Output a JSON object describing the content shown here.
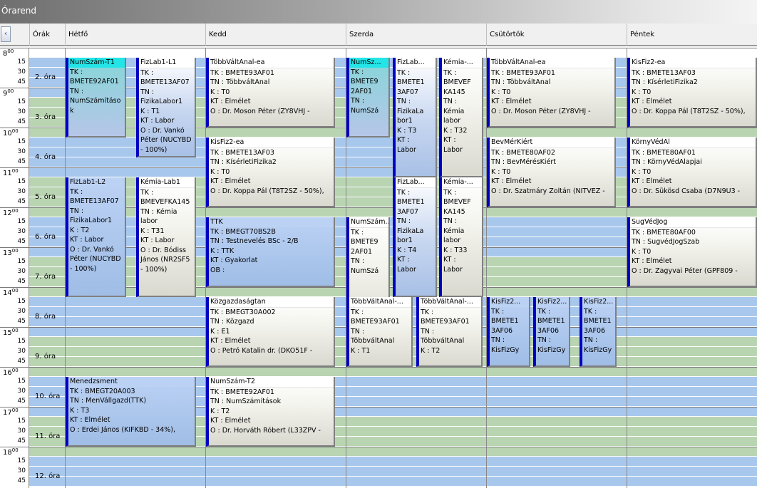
{
  "window": {
    "title": "Órarend"
  },
  "header": {
    "scroll_icon": "‹",
    "hours_col": "Órák",
    "days": [
      "Hétfő",
      "Kedd",
      "Szerda",
      "Csütörtök",
      "Péntek"
    ]
  },
  "time_labels": {
    "hours": [
      "8",
      "9",
      "10",
      "11",
      "12",
      "13",
      "14",
      "15",
      "16",
      "17",
      "18"
    ],
    "minutes": [
      "00",
      "15",
      "30",
      "45"
    ],
    "periods": [
      "2. óra",
      "3. óra",
      "4. óra",
      "5. óra",
      "6. óra",
      "7. óra",
      "8. óra",
      "9. óra",
      "10. óra",
      "11. óra",
      "12. óra"
    ]
  },
  "events": [
    {
      "title": "NumSzám-T1",
      "body": "TK :\nBMETE92AF01\nTN :\nNumSzámításo\nk",
      "style": "cyan"
    },
    {
      "title": "FizLab1-L1",
      "body": "TK :\nBMETE13AF07\nTN :\nFizikaLabor1\nK : T1\nKT : Labor\nO : Dr. Vankó\nPéter (NUCYBD\n- 100%)",
      "style": "bluebody"
    },
    {
      "title": "TöbbVáltAnal-ea",
      "body": "TK : BMETE93AF01\nTN : TöbbváltAnal\nK : T0\nKT : Elmélet\nO : Dr. Moson Péter (ZY8VHJ -",
      "style": "white"
    },
    {
      "title": "NumSz...",
      "body": "TK :\nBMETE9\n2AF01\nTN :\nNumSzá",
      "style": "cyan"
    },
    {
      "title": "FizLab...",
      "body": "TK :\nBMETE1\n3AF07\nTN :\nFizikaLa\nbor1\nK : T3\nKT :\nLabor",
      "style": "bluebody"
    },
    {
      "title": "Kémia-...",
      "body": "TK :\nBMEVEF\nKA145\nTN :\nKémia\nlabor\nK : T32\nKT :\nLabor",
      "style": "white"
    },
    {
      "title": "TöbbVáltAnal-ea",
      "body": "TK : BMETE93AF01\nTN : TöbbváltAnal\nK : T0\nKT : Elmélet\nO : Dr. Moson Péter (ZY8VHJ -",
      "style": "white"
    },
    {
      "title": "KisFiz2-ea",
      "body": "TK : BMETE13AF03\nTN : KísérletiFizika2\nK : T0\nKT : Elmélet\nO : Dr. Koppa Pál (T8T2SZ - 50%),",
      "style": "white"
    },
    {
      "title": "KisFiz2-ea",
      "body": "TK : BMETE13AF03\nTN : KísérletiFizika2\nK : T0\nKT : Elmélet\nO : Dr. Koppa Pál (T8T2SZ - 50%),",
      "style": "white"
    },
    {
      "title": "BevMérKiért",
      "body": "TK : BMETE80AF02\nTN : BevMérésKiért\nK : T0\nKT : Elmélet\nO : Dr. Szatmáry Zoltán (NITVEZ -",
      "style": "white"
    },
    {
      "title": "KörnyVédAl",
      "body": "TK : BMETE80AF01\nTN : KörnyVédAlapjai\nK : T0\nKT : Elmélet\nO : Dr. Sükösd Csaba (D7N9U3 -",
      "style": "white"
    },
    {
      "title": "FizLab1-L2",
      "body": "TK :\nBMETE13AF07\nTN :\nFizikaLabor1\nK : T2\nKT : Labor\nO : Dr. Vankó\nPéter (NUCYBD\n- 100%)",
      "style": "blue"
    },
    {
      "title": "Kémia-Lab1",
      "body": "TK :\nBMEVEFKA145\nTN : Kémia\nlabor\nK : T31\nKT : Labor\nO : Dr. Bódiss\nJános (NR2SF5\n- 100%)",
      "style": "white"
    },
    {
      "title": "FizLab...",
      "body": "TK :\nBMETE1\n3AF07\nTN :\nFizikaLa\nbor1\nK : T4\nKT :\nLabor",
      "style": "bluebody"
    },
    {
      "title": "Kémia-...",
      "body": "TK :\nBMEVEF\nKA145\nTN :\nKémia\nlabor\nK : T33\nKT :\nLabor",
      "style": "white"
    },
    {
      "title": "TTK",
      "body": "TK : BMEGT70BS2B\nTN : Testnevelés BSc - 2/B\nK : TTK\nKT : Gyakorlat\nOB :",
      "style": "blue"
    },
    {
      "title": "NumSzám...",
      "body": "TK :\nBMETE9\n2AF01\nTN :\nNumSzá",
      "style": "white"
    },
    {
      "title": "SugVédJog",
      "body": "TK : BMETE80AF00\nTN : SugvédJogSzab\nK : T0\nKT : Elmélet\nO : Dr. Zagyvai Péter (GPF809 -",
      "style": "white"
    },
    {
      "title": "Közgazdaságtan",
      "body": "TK : BMEGT30A002\nTN : Közgazd\nK : E1\nKT : Elmélet\nO : Petró Katalin dr. (DKO51F -",
      "style": "white"
    },
    {
      "title": "TöbbVáltAnal-...",
      "body": "TK :\nBMETE93AF01\nTN :\nTöbbváltAnal\nK : T1",
      "style": "white"
    },
    {
      "title": "TöbbVáltAnal-...",
      "body": "TK :\nBMETE93AF01\nTN :\nTöbbváltAnal\nK : T2",
      "style": "white"
    },
    {
      "title": "KisFiz2...",
      "body": "TK :\nBMETE1\n3AF06\nTN :\nKisFizGy",
      "style": "blue"
    },
    {
      "title": "KisFiz2...",
      "body": "TK :\nBMETE1\n3AF06\nTN :\nKisFizGy",
      "style": "blue"
    },
    {
      "title": "KisFiz2...",
      "body": "TK :\nBMETE1\n3AF06\nTN :\nKisFizGy",
      "style": "blue"
    },
    {
      "title": "Menedzsment",
      "body": "TK : BMEGT20A003\nTN : MenVállgazd(TTK)\nK : T3\nKT : Elmélet\nO : Erdei János (KIFKBD - 34%),",
      "style": "blue"
    },
    {
      "title": "NumSzám-T2",
      "body": "TK : BMETE92AF01\nTN : NumSzámítások\nK : T2\nKT : Elmélet\nO : Dr. Horváth Róbert (L33ZPV -",
      "style": "white"
    }
  ]
}
